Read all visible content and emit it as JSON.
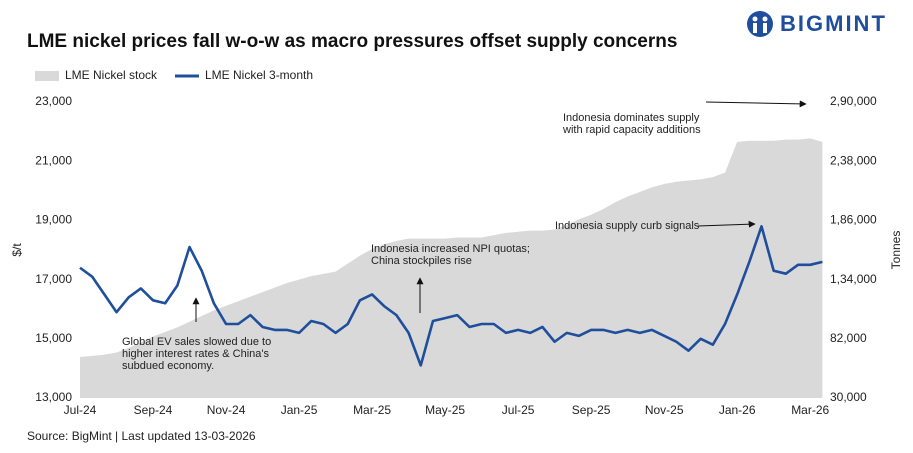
{
  "brand": "BIGMINT",
  "chart_data": {
    "type": "line",
    "title": "LME nickel prices fall w-o-w as macro pressures offset supply concerns",
    "source": "Source: BigMint | Last updated 13-03-2026",
    "ylabel": "$/t",
    "y2label": "Tonnes",
    "categories": [
      "Jul-24",
      null,
      null,
      null,
      null,
      null,
      "Sep-24",
      null,
      null,
      null,
      null,
      null,
      "Nov-24",
      null,
      null,
      null,
      null,
      null,
      "Jan-25",
      null,
      null,
      null,
      null,
      null,
      "Mar-25",
      null,
      null,
      null,
      null,
      null,
      "May-25",
      null,
      null,
      null,
      null,
      null,
      "Jul-25",
      null,
      null,
      null,
      null,
      null,
      "Sep-25",
      null,
      null,
      null,
      null,
      null,
      "Nov-25",
      null,
      null,
      null,
      null,
      null,
      "Jan-26",
      null,
      null,
      null,
      null,
      null,
      "Mar-26",
      null
    ],
    "ylim": [
      13000,
      23000
    ],
    "yticks": [
      {
        "value": 13000,
        "label": "13,000"
      },
      {
        "value": 15000,
        "label": "15,000"
      },
      {
        "value": 17000,
        "label": "17,000"
      },
      {
        "value": 19000,
        "label": "19,000"
      },
      {
        "value": 21000,
        "label": "21,000"
      },
      {
        "value": 23000,
        "label": "23,000"
      }
    ],
    "y2lim": [
      30000,
      290000
    ],
    "y2ticks": [
      {
        "value": 30000,
        "label": "30,000"
      },
      {
        "value": 82000,
        "label": "82,000"
      },
      {
        "value": 134000,
        "label": "1,34,000"
      },
      {
        "value": 186000,
        "label": "1,86,000"
      },
      {
        "value": 238000,
        "label": "2,38,000"
      },
      {
        "value": 290000,
        "label": "2,90,000"
      }
    ],
    "series": [
      {
        "name": "LME Nickel stock",
        "type": "area",
        "axis": "y2",
        "color": "#d9d9d9",
        "values": [
          66000,
          67000,
          68000,
          70000,
          74000,
          79000,
          84000,
          88000,
          92000,
          97000,
          102000,
          107000,
          111000,
          115000,
          119000,
          123000,
          127000,
          131000,
          134000,
          137000,
          139000,
          141000,
          148000,
          155000,
          161000,
          165000,
          168000,
          170000,
          170000,
          170000,
          170000,
          171000,
          171000,
          171000,
          173000,
          175000,
          176000,
          177000,
          177000,
          178000,
          182000,
          187000,
          191000,
          196000,
          202000,
          207000,
          211000,
          215000,
          218000,
          220000,
          221000,
          222000,
          224000,
          228000,
          255000,
          256000,
          256000,
          256000,
          257000,
          257000,
          258000,
          255000
        ]
      },
      {
        "name": "LME Nickel 3-month",
        "type": "line",
        "color": "#1f4e9c",
        "values": [
          17400,
          17100,
          16500,
          15900,
          16400,
          16700,
          16300,
          16200,
          16800,
          18100,
          17300,
          16200,
          15500,
          15500,
          15800,
          15400,
          15300,
          15300,
          15200,
          15600,
          15500,
          15200,
          15500,
          16300,
          16500,
          16100,
          15800,
          15200,
          14100,
          15600,
          15700,
          15800,
          15400,
          15500,
          15500,
          15200,
          15300,
          15200,
          15400,
          14900,
          15200,
          15100,
          15300,
          15300,
          15200,
          15300,
          15200,
          15300,
          15100,
          14900,
          14600,
          15000,
          14800,
          15500,
          16500,
          17600,
          18800,
          17300,
          17200,
          17500,
          17500,
          17600
        ]
      }
    ],
    "annotations": [
      {
        "lines": [
          "Global EV sales slowed due to",
          "higher interest rates & China's",
          "subdued economy."
        ]
      },
      {
        "lines": [
          "Indonesia increased NPI quotas;",
          "China stockpiles rise"
        ]
      },
      {
        "lines": [
          "Indonesia supply curb signals"
        ]
      },
      {
        "lines": [
          "Indonesia dominates supply",
          "with rapid capacity additions"
        ]
      }
    ],
    "legend": "top-left",
    "grid": false
  }
}
